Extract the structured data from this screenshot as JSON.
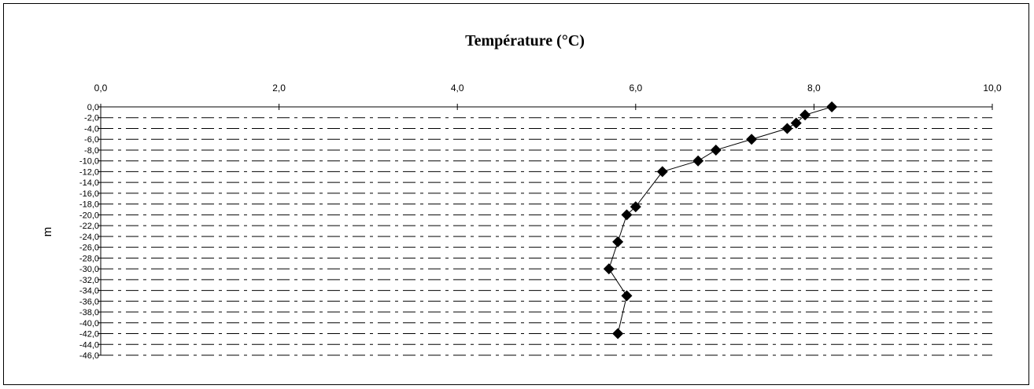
{
  "chart_data": {
    "type": "scatter",
    "title": "Température (°C)",
    "xlabel": "",
    "ylabel": "m",
    "x_axis_position": "top",
    "xlim": [
      0,
      10
    ],
    "ylim": [
      -46,
      0
    ],
    "x_ticks": [
      "0,0",
      "2,0",
      "4,0",
      "6,0",
      "8,0",
      "10,0"
    ],
    "x_tick_values": [
      0,
      2,
      4,
      6,
      8,
      10
    ],
    "y_ticks": [
      "0,0",
      "-2,0",
      "-4,0",
      "-6,0",
      "-8,0",
      "-10,0",
      "-12,0",
      "-14,0",
      "-16,0",
      "-18,0",
      "-20,0",
      "-22,0",
      "-24,0",
      "-26,0",
      "-28,0",
      "-30,0",
      "-32,0",
      "-34,0",
      "-36,0",
      "-38,0",
      "-40,0",
      "-42,0",
      "-44,0",
      "-46,0"
    ],
    "y_tick_values": [
      0,
      -2,
      -4,
      -6,
      -8,
      -10,
      -12,
      -14,
      -16,
      -18,
      -20,
      -22,
      -24,
      -26,
      -28,
      -30,
      -32,
      -34,
      -36,
      -38,
      -40,
      -42,
      -44,
      -46
    ],
    "grid": "horizontal dashed",
    "legend": "none",
    "marker": "diamond",
    "line_connected": true,
    "colors": {
      "marker": "#000000",
      "line": "#000000",
      "grid": "#000000"
    },
    "series": [
      {
        "points": [
          {
            "x": 8.2,
            "y": 0
          },
          {
            "x": 7.9,
            "y": -1.5
          },
          {
            "x": 7.8,
            "y": -3
          },
          {
            "x": 7.7,
            "y": -4
          },
          {
            "x": 7.3,
            "y": -6
          },
          {
            "x": 6.9,
            "y": -8
          },
          {
            "x": 6.7,
            "y": -10
          },
          {
            "x": 6.3,
            "y": -12
          },
          {
            "x": 6.0,
            "y": -18.5
          },
          {
            "x": 5.9,
            "y": -20
          },
          {
            "x": 5.8,
            "y": -25
          },
          {
            "x": 5.7,
            "y": -30
          },
          {
            "x": 5.9,
            "y": -35
          },
          {
            "x": 5.8,
            "y": -42
          }
        ]
      }
    ]
  }
}
